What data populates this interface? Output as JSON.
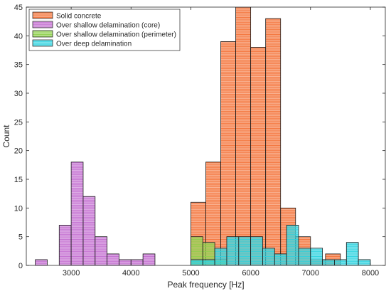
{
  "chart_data": {
    "type": "bar",
    "subtype": "overlapping histogram",
    "xlabel": "Peak frequency [Hz]",
    "ylabel": "Count",
    "xlim": [
      2250,
      8250
    ],
    "ylim": [
      0,
      45
    ],
    "xticks": [
      3000,
      4000,
      5000,
      6000,
      7000,
      8000
    ],
    "yticks": [
      0,
      5,
      10,
      15,
      20,
      25,
      30,
      35,
      40,
      45
    ],
    "grid": false,
    "legend_position": "top-left",
    "series": [
      {
        "name": "Solid concrete",
        "color": "#f4743b",
        "bins": [
          {
            "x0": 5000,
            "x1": 5250,
            "count": 11
          },
          {
            "x0": 5250,
            "x1": 5500,
            "count": 18
          },
          {
            "x0": 5500,
            "x1": 5750,
            "count": 39
          },
          {
            "x0": 5750,
            "x1": 6000,
            "count": 45
          },
          {
            "x0": 6000,
            "x1": 6250,
            "count": 38
          },
          {
            "x0": 6250,
            "x1": 6500,
            "count": 43
          },
          {
            "x0": 6500,
            "x1": 6750,
            "count": 10
          },
          {
            "x0": 6750,
            "x1": 7000,
            "count": 5
          },
          {
            "x0": 7000,
            "x1": 7250,
            "count": 1
          },
          {
            "x0": 7250,
            "x1": 7500,
            "count": 2
          }
        ]
      },
      {
        "name": "Over shallow delamination (core)",
        "color": "#c46fd1",
        "bins": [
          {
            "x0": 2400,
            "x1": 2600,
            "count": 1
          },
          {
            "x0": 2800,
            "x1": 3000,
            "count": 7
          },
          {
            "x0": 3000,
            "x1": 3200,
            "count": 18
          },
          {
            "x0": 3200,
            "x1": 3400,
            "count": 12
          },
          {
            "x0": 3400,
            "x1": 3600,
            "count": 5
          },
          {
            "x0": 3600,
            "x1": 3800,
            "count": 2
          },
          {
            "x0": 3800,
            "x1": 4000,
            "count": 1
          },
          {
            "x0": 4000,
            "x1": 4200,
            "count": 1
          },
          {
            "x0": 4200,
            "x1": 4400,
            "count": 2
          }
        ]
      },
      {
        "name": "Over shallow delamination (perimeter)",
        "color": "#8fd14f",
        "bins": [
          {
            "x0": 5000,
            "x1": 5200,
            "count": 5
          },
          {
            "x0": 5200,
            "x1": 5400,
            "count": 4
          },
          {
            "x0": 5400,
            "x1": 5600,
            "count": 1
          }
        ]
      },
      {
        "name": "Over deep delamination",
        "color": "#2fd3e0",
        "bins": [
          {
            "x0": 5000,
            "x1": 5200,
            "count": 1
          },
          {
            "x0": 5200,
            "x1": 5400,
            "count": 1
          },
          {
            "x0": 5400,
            "x1": 5600,
            "count": 3
          },
          {
            "x0": 5600,
            "x1": 5800,
            "count": 5
          },
          {
            "x0": 5800,
            "x1": 6000,
            "count": 5
          },
          {
            "x0": 6000,
            "x1": 6200,
            "count": 5
          },
          {
            "x0": 6200,
            "x1": 6400,
            "count": 3
          },
          {
            "x0": 6400,
            "x1": 6600,
            "count": 2
          },
          {
            "x0": 6600,
            "x1": 6800,
            "count": 7
          },
          {
            "x0": 6800,
            "x1": 7000,
            "count": 3
          },
          {
            "x0": 7000,
            "x1": 7200,
            "count": 3
          },
          {
            "x0": 7200,
            "x1": 7400,
            "count": 1
          },
          {
            "x0": 7400,
            "x1": 7600,
            "count": 1
          },
          {
            "x0": 7600,
            "x1": 7800,
            "count": 4
          },
          {
            "x0": 7800,
            "x1": 8000,
            "count": 1
          }
        ]
      }
    ]
  }
}
